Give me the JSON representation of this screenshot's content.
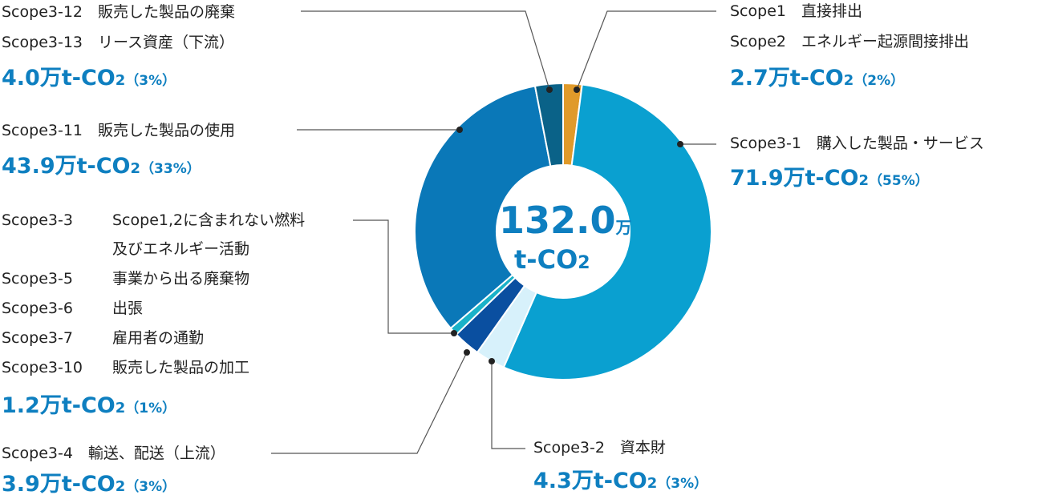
{
  "chart_data": {
    "type": "pie",
    "center_total": "132.0",
    "center_unit_top": "万",
    "center_unit_bottom": "t-CO",
    "center_unit_sub": "2",
    "slices": [
      {
        "lines": [
          "Scope1　直接排出",
          "Scope2　エネルギー起源間接排出"
        ],
        "value": 2.7,
        "percent": 2,
        "value_text": "2.7万t-CO",
        "sub": "2",
        "pct_text": "（2%）",
        "color": "#e09a2a"
      },
      {
        "lines": [
          "Scope3-1　購入した製品・サービス"
        ],
        "value": 71.9,
        "percent": 55,
        "value_text": "71.9万t-CO",
        "sub": "2",
        "pct_text": "（55%）",
        "color": "#0aa0d0"
      },
      {
        "lines": [
          "Scope3-2　資本財"
        ],
        "value": 4.3,
        "percent": 3,
        "value_text": "4.3万t-CO",
        "sub": "2",
        "pct_text": "（3%）",
        "color": "#d7f1fb"
      },
      {
        "lines": [
          "Scope3-4　輸送、配送（上流）"
        ],
        "value": 3.9,
        "percent": 3,
        "value_text": "3.9万t-CO",
        "sub": "2",
        "pct_text": "（3%）",
        "color": "#0a4fa0"
      },
      {
        "lines": [
          "Scope3-3",
          "Scope1,2に含まれない燃料",
          "及びエネルギー活動",
          "Scope3-5",
          "事業から出る廃棄物",
          "Scope3-6",
          "出張",
          "Scope3-7",
          "雇用者の通勤",
          "Scope3-10",
          "販売した製品の加工"
        ],
        "value": 1.2,
        "percent": 1,
        "value_text": "1.2万t-CO",
        "sub": "2",
        "pct_text": "（1%）",
        "color": "#1ab2c8"
      },
      {
        "lines": [
          "Scope3-11　販売した製品の使用"
        ],
        "value": 43.9,
        "percent": 33,
        "value_text": "43.9万t-CO",
        "sub": "2",
        "pct_text": "（33%）",
        "color": "#0a78b8"
      },
      {
        "lines": [
          "Scope3-12　販売した製品の廃棄",
          "Scope3-13　リース資産（下流）"
        ],
        "value": 4.0,
        "percent": 3,
        "value_text": "4.0万t-CO",
        "sub": "2",
        "pct_text": "（3%）",
        "color": "#0a6288"
      }
    ]
  }
}
